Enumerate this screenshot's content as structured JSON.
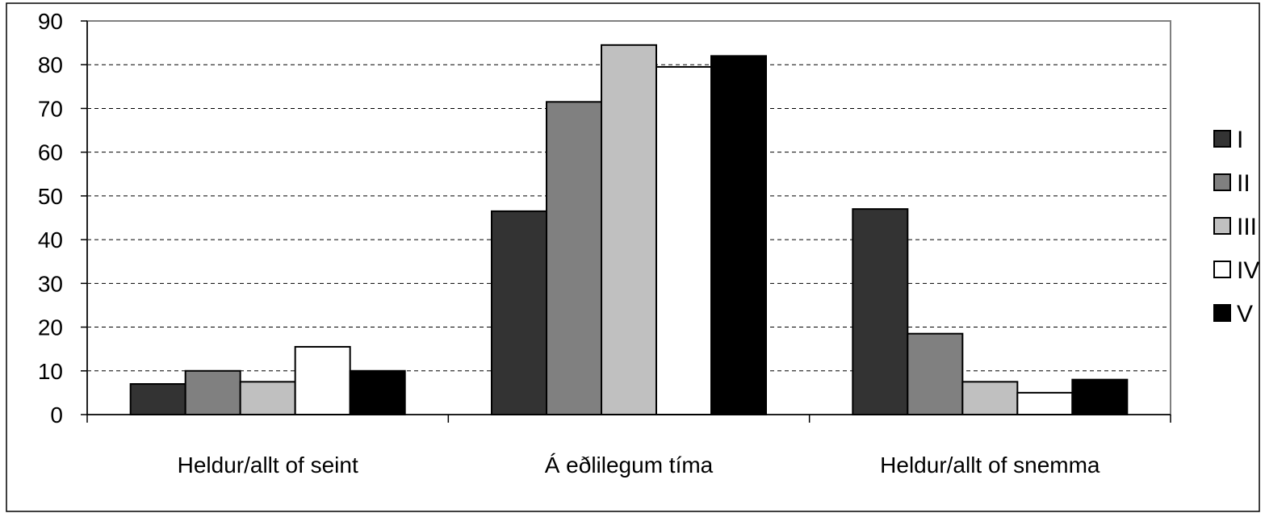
{
  "chart_data": {
    "type": "bar",
    "categories": [
      "Heldur/allt of seint",
      "Á eðlilegum tíma",
      "Heldur/allt of snemma"
    ],
    "series": [
      {
        "name": "I",
        "color": "#333333",
        "values": [
          7,
          46.5,
          47
        ]
      },
      {
        "name": "II",
        "color": "#808080",
        "values": [
          10,
          71.5,
          18.5
        ]
      },
      {
        "name": "III",
        "color": "#c0c0c0",
        "values": [
          7.5,
          84.5,
          7.5
        ]
      },
      {
        "name": "IV",
        "color": "#ffffff",
        "values": [
          15.5,
          79.5,
          5
        ]
      },
      {
        "name": "V",
        "color": "#000000",
        "values": [
          10,
          82,
          8
        ]
      }
    ],
    "ylim": [
      0,
      90
    ],
    "yticks": [
      "0",
      "10",
      "20",
      "30",
      "40",
      "50",
      "60",
      "70",
      "80",
      "90"
    ],
    "grid": true,
    "legend_position": "right",
    "title": "",
    "xlabel": "",
    "ylabel": ""
  }
}
